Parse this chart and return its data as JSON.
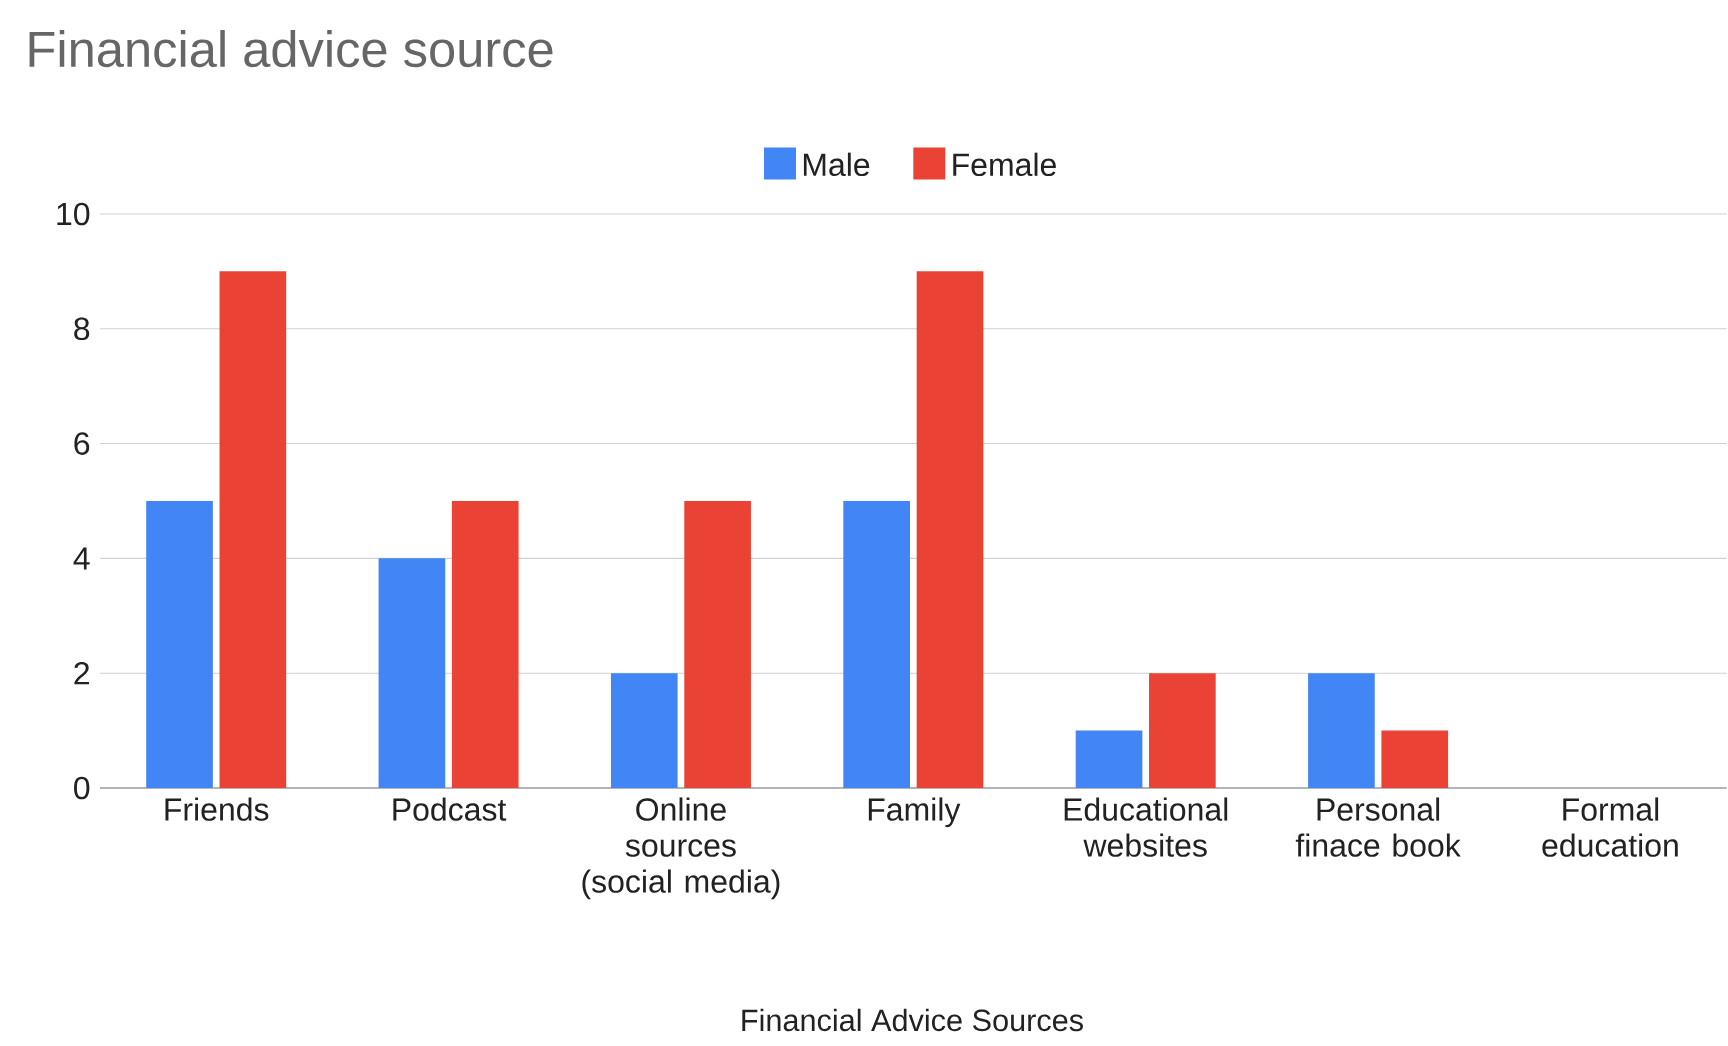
{
  "chart_data": {
    "type": "bar",
    "title": "Financial advice source",
    "xlabel": "Financial Advice Sources",
    "categories": [
      "Friends",
      "Podcast",
      "Online sources (social media)",
      "Family",
      "Educational websites",
      "Personal finace book",
      "Formal education"
    ],
    "series": [
      {
        "name": "Male",
        "color": "#4285f4",
        "values": [
          5,
          4,
          2,
          5,
          1,
          2,
          0
        ]
      },
      {
        "name": "Female",
        "color": "#ea4335",
        "values": [
          9,
          5,
          5,
          9,
          2,
          1,
          0
        ]
      }
    ],
    "ylim": [
      0,
      10
    ],
    "yticks": [
      0,
      2,
      4,
      6,
      8,
      10
    ],
    "grid": "y",
    "legend": "top"
  }
}
